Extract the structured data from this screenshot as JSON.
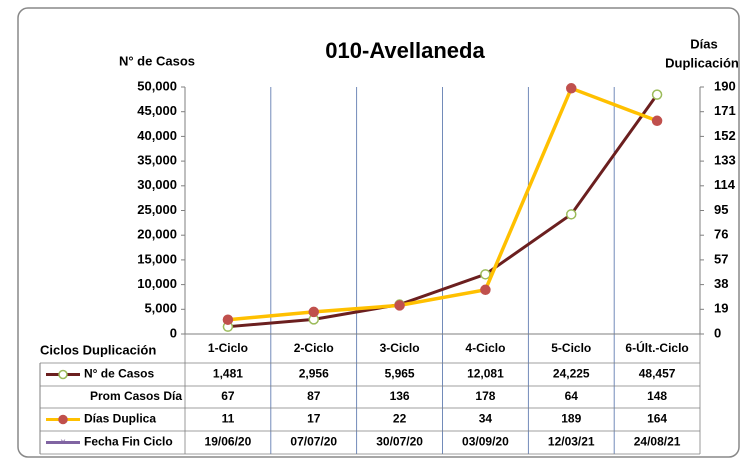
{
  "chart_data": {
    "type": "line",
    "title": "010-Avellaneda",
    "y_label": "N° de Casos",
    "y2_label": [
      "Días",
      "Duplicación"
    ],
    "table_header": "Ciclos Duplicación",
    "categories": [
      "1-Ciclo",
      "2-Ciclo",
      "3-Ciclo",
      "4-Ciclo",
      "5-Ciclo",
      "6-Últ.-Ciclo"
    ],
    "ylim": [
      0,
      50000
    ],
    "yticks": [
      0,
      {
        "value": 5000,
        "label": "5,000"
      },
      {
        "value": 10000,
        "label": "10,000"
      },
      {
        "value": 15000,
        "label": "15,000"
      },
      {
        "value": 20000,
        "label": "20,000"
      },
      {
        "value": 25000,
        "label": "25,000"
      },
      {
        "value": 30000,
        "label": "30,000"
      },
      {
        "value": 35000,
        "label": "35,000"
      },
      {
        "value": 40000,
        "label": "40,000"
      },
      {
        "value": 45000,
        "label": "45,000"
      },
      {
        "value": 50000,
        "label": "50,000"
      }
    ],
    "y2lim": [
      0,
      190
    ],
    "y2ticks": [
      0,
      19,
      38,
      57,
      76,
      95,
      114,
      133,
      152,
      171,
      190
    ],
    "series": [
      {
        "name": "N° de Casos",
        "color": "#6b1f1f",
        "marker_color": "#9bbb59",
        "values": [
          1481,
          2956,
          5965,
          12081,
          24225,
          48457
        ],
        "value_labels": [
          "1,481",
          "2,956",
          "5,965",
          "12,081",
          "24,225",
          "48,457"
        ]
      },
      {
        "name": "Días Duplica",
        "color": "#ffc000",
        "marker_color": "#c0504d",
        "axis": "y2",
        "values": [
          11,
          17,
          22,
          34,
          189,
          164
        ]
      }
    ],
    "table_rows": [
      {
        "name": "Prom Casos Día",
        "values": [
          67,
          87,
          136,
          178,
          64,
          148
        ]
      },
      {
        "name": "Fecha Fin Ciclo",
        "color": "#8064a2",
        "values": [
          "19/06/20",
          "07/07/20",
          "30/07/20",
          "03/09/20",
          "12/03/21",
          "24/08/21"
        ]
      }
    ]
  }
}
